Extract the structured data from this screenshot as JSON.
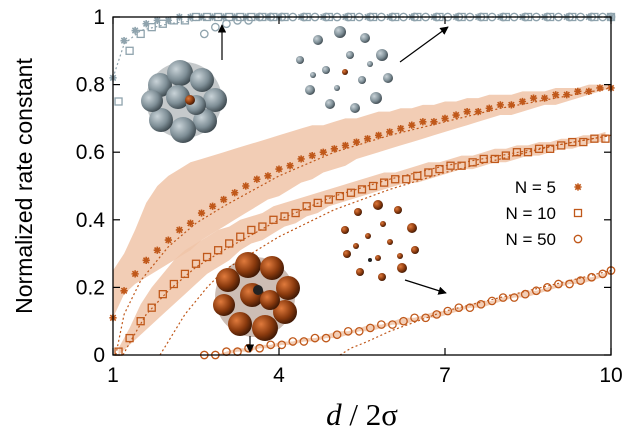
{
  "chart_data": {
    "type": "scatter",
    "title": "",
    "xlabel": {
      "italic": "d",
      "rest": " / 2σ"
    },
    "ylabel": "Normalized rate constant",
    "xlim": [
      1,
      10
    ],
    "ylim": [
      0,
      1
    ],
    "xticks": [
      "1",
      "4",
      "7",
      "10"
    ],
    "yticks": [
      "0",
      "0.2",
      "0.4",
      "0.6",
      "0.8",
      "1"
    ],
    "grid": false,
    "legend_position": "right",
    "legend": [
      {
        "label": "N = 5",
        "marker": "star"
      },
      {
        "label": "N = 10",
        "marker": "square"
      },
      {
        "label": "N = 50",
        "marker": "circle"
      }
    ],
    "colors": {
      "orange": "#c0581a",
      "blue_gray": "#8fa3ad",
      "band": "#f0c4a8"
    },
    "series": [
      {
        "marker": "star",
        "color": "orange",
        "x": [
          1.0,
          1.2,
          1.4,
          1.6,
          1.8,
          2.0,
          2.2,
          2.4,
          2.6,
          2.8,
          3.0,
          3.2,
          3.4,
          3.6,
          3.8,
          4.0,
          4.2,
          4.4,
          4.6,
          4.8,
          5.0,
          5.2,
          5.4,
          5.6,
          5.8,
          6.0,
          6.2,
          6.4,
          6.6,
          6.8,
          7.0,
          7.2,
          7.4,
          7.6,
          7.8,
          8.0,
          8.2,
          8.4,
          8.6,
          8.8,
          9.0,
          9.2,
          9.4,
          9.6,
          9.8,
          10.0
        ],
        "y": [
          0.11,
          0.19,
          0.24,
          0.28,
          0.31,
          0.34,
          0.37,
          0.39,
          0.42,
          0.44,
          0.46,
          0.48,
          0.5,
          0.52,
          0.53,
          0.55,
          0.56,
          0.58,
          0.59,
          0.6,
          0.61,
          0.62,
          0.63,
          0.64,
          0.65,
          0.66,
          0.67,
          0.68,
          0.69,
          0.69,
          0.7,
          0.71,
          0.72,
          0.72,
          0.73,
          0.74,
          0.74,
          0.75,
          0.76,
          0.76,
          0.77,
          0.77,
          0.78,
          0.78,
          0.79,
          0.79
        ],
        "band_upper": [
          0.25,
          0.3,
          0.37,
          0.45,
          0.5,
          0.53,
          0.55,
          0.57,
          0.58,
          0.59,
          0.6,
          0.61,
          0.62,
          0.63,
          0.64,
          0.65,
          0.66,
          0.67,
          0.68,
          0.68,
          0.69,
          0.7,
          0.7,
          0.71,
          0.72,
          0.72,
          0.73,
          0.73,
          0.74,
          0.74,
          0.75,
          0.75,
          0.76,
          0.76,
          0.77,
          0.77,
          0.77,
          0.78,
          0.78,
          0.78,
          0.79,
          0.79,
          0.79,
          0.8,
          0.8,
          0.8
        ],
        "band_lower": [
          0.11,
          0.18,
          0.21,
          0.23,
          0.25,
          0.27,
          0.29,
          0.31,
          0.34,
          0.36,
          0.38,
          0.4,
          0.42,
          0.44,
          0.46,
          0.47,
          0.49,
          0.51,
          0.52,
          0.54,
          0.55,
          0.56,
          0.58,
          0.59,
          0.6,
          0.61,
          0.62,
          0.63,
          0.64,
          0.65,
          0.66,
          0.67,
          0.68,
          0.69,
          0.7,
          0.71,
          0.71,
          0.72,
          0.73,
          0.74,
          0.74,
          0.75,
          0.76,
          0.77,
          0.78,
          0.79
        ]
      },
      {
        "marker": "square",
        "color": "orange",
        "x": [
          1.1,
          1.3,
          1.5,
          1.7,
          1.9,
          2.1,
          2.3,
          2.5,
          2.7,
          2.9,
          3.1,
          3.3,
          3.5,
          3.7,
          3.9,
          4.1,
          4.3,
          4.5,
          4.7,
          4.9,
          5.1,
          5.3,
          5.5,
          5.7,
          5.9,
          6.1,
          6.3,
          6.5,
          6.7,
          6.9,
          7.1,
          7.3,
          7.5,
          7.7,
          7.9,
          8.1,
          8.3,
          8.5,
          8.7,
          8.9,
          9.1,
          9.3,
          9.5,
          9.7,
          9.9
        ],
        "y": [
          0.01,
          0.05,
          0.1,
          0.14,
          0.18,
          0.21,
          0.24,
          0.27,
          0.29,
          0.31,
          0.33,
          0.35,
          0.37,
          0.38,
          0.4,
          0.41,
          0.42,
          0.44,
          0.45,
          0.46,
          0.47,
          0.48,
          0.49,
          0.5,
          0.51,
          0.52,
          0.52,
          0.53,
          0.54,
          0.55,
          0.56,
          0.56,
          0.57,
          0.58,
          0.58,
          0.59,
          0.6,
          0.6,
          0.61,
          0.61,
          0.62,
          0.63,
          0.63,
          0.64,
          0.64
        ],
        "band_upper": [
          0.02,
          0.08,
          0.15,
          0.2,
          0.24,
          0.28,
          0.31,
          0.33,
          0.35,
          0.37,
          0.38,
          0.4,
          0.41,
          0.42,
          0.44,
          0.45,
          0.46,
          0.47,
          0.48,
          0.49,
          0.5,
          0.51,
          0.52,
          0.53,
          0.54,
          0.54,
          0.55,
          0.56,
          0.57,
          0.57,
          0.58,
          0.59,
          0.59,
          0.6,
          0.61,
          0.61,
          0.62,
          0.62,
          0.63,
          0.63,
          0.64,
          0.64,
          0.65,
          0.65,
          0.66
        ],
        "band_lower": [
          0.0,
          0.03,
          0.06,
          0.09,
          0.12,
          0.15,
          0.18,
          0.21,
          0.24,
          0.26,
          0.28,
          0.31,
          0.33,
          0.34,
          0.36,
          0.38,
          0.39,
          0.41,
          0.42,
          0.44,
          0.45,
          0.46,
          0.47,
          0.48,
          0.49,
          0.5,
          0.51,
          0.51,
          0.52,
          0.53,
          0.54,
          0.55,
          0.55,
          0.56,
          0.57,
          0.57,
          0.58,
          0.59,
          0.59,
          0.6,
          0.61,
          0.61,
          0.62,
          0.63,
          0.63
        ]
      },
      {
        "marker": "circle",
        "color": "orange",
        "x": [
          2.65,
          2.85,
          3.05,
          3.25,
          3.45,
          3.65,
          3.85,
          4.05,
          4.25,
          4.45,
          4.65,
          4.85,
          5.05,
          5.25,
          5.45,
          5.65,
          5.85,
          6.05,
          6.25,
          6.45,
          6.65,
          6.85,
          7.05,
          7.25,
          7.45,
          7.65,
          7.85,
          8.05,
          8.25,
          8.45,
          8.65,
          8.85,
          9.05,
          9.25,
          9.45,
          9.65,
          9.85,
          10.0
        ],
        "y": [
          0.0,
          0.0,
          0.01,
          0.01,
          0.02,
          0.02,
          0.03,
          0.03,
          0.04,
          0.04,
          0.05,
          0.05,
          0.06,
          0.07,
          0.07,
          0.08,
          0.09,
          0.09,
          0.1,
          0.11,
          0.11,
          0.12,
          0.13,
          0.14,
          0.14,
          0.15,
          0.16,
          0.17,
          0.17,
          0.18,
          0.19,
          0.2,
          0.21,
          0.21,
          0.22,
          0.23,
          0.24,
          0.25
        ],
        "band_upper": [
          0.0,
          0.0,
          0.01,
          0.02,
          0.02,
          0.03,
          0.03,
          0.04,
          0.04,
          0.05,
          0.05,
          0.06,
          0.07,
          0.07,
          0.08,
          0.09,
          0.09,
          0.1,
          0.11,
          0.11,
          0.12,
          0.13,
          0.13,
          0.14,
          0.15,
          0.16,
          0.16,
          0.17,
          0.18,
          0.19,
          0.19,
          0.2,
          0.21,
          0.22,
          0.23,
          0.23,
          0.24,
          0.25
        ],
        "band_lower": [
          0.0,
          0.0,
          0.0,
          0.01,
          0.01,
          0.02,
          0.02,
          0.03,
          0.03,
          0.04,
          0.04,
          0.05,
          0.05,
          0.06,
          0.07,
          0.07,
          0.08,
          0.09,
          0.09,
          0.1,
          0.11,
          0.11,
          0.12,
          0.13,
          0.14,
          0.14,
          0.15,
          0.16,
          0.17,
          0.17,
          0.18,
          0.19,
          0.2,
          0.21,
          0.21,
          0.22,
          0.23,
          0.24
        ]
      },
      {
        "marker": "star",
        "color": "blue_gray",
        "x": [
          1.0,
          1.2,
          1.4,
          1.6,
          1.8,
          2.0,
          2.2,
          2.4,
          2.6,
          2.8,
          3.0,
          3.2,
          3.4,
          3.6,
          3.8,
          4.0,
          4.4,
          4.8,
          5.2,
          5.6,
          6.0,
          6.4,
          6.8,
          7.2,
          7.6,
          8.0,
          8.4,
          8.8,
          9.2,
          9.6,
          10.0
        ],
        "y": [
          0.82,
          0.93,
          0.96,
          0.98,
          0.99,
          0.99,
          1.0,
          1.0,
          1.0,
          1.0,
          1.0,
          1.0,
          1.0,
          1.0,
          1.0,
          1.0,
          1.0,
          1.0,
          1.0,
          1.0,
          1.0,
          1.0,
          1.0,
          1.0,
          1.0,
          1.0,
          1.0,
          1.0,
          1.0,
          1.0,
          1.0
        ]
      },
      {
        "marker": "square",
        "color": "blue_gray",
        "x": [
          1.1,
          1.3,
          1.5,
          1.7,
          1.9,
          2.1,
          2.3,
          2.5,
          2.7,
          2.9,
          3.1,
          3.3,
          3.5,
          3.7,
          3.9,
          4.1,
          4.5,
          4.9,
          5.3,
          5.7,
          6.1,
          6.5,
          6.9,
          7.3,
          7.7,
          8.1,
          8.5,
          8.9,
          9.3,
          9.7,
          10.0
        ],
        "y": [
          0.75,
          0.9,
          0.95,
          0.97,
          0.98,
          0.99,
          0.99,
          1.0,
          1.0,
          1.0,
          1.0,
          1.0,
          1.0,
          1.0,
          1.0,
          1.0,
          1.0,
          1.0,
          1.0,
          1.0,
          1.0,
          1.0,
          1.0,
          1.0,
          1.0,
          1.0,
          1.0,
          1.0,
          1.0,
          1.0,
          1.0
        ]
      },
      {
        "marker": "circle",
        "color": "blue_gray",
        "x": [
          2.65,
          2.85,
          3.05,
          3.25,
          3.45,
          3.65,
          3.85,
          4.05,
          4.25,
          4.45,
          4.65,
          4.85,
          5.05,
          5.25,
          5.45,
          5.65,
          5.85,
          6.05,
          6.25,
          6.45,
          6.65,
          6.85,
          7.05,
          7.25,
          7.45,
          7.65,
          7.85,
          8.05,
          8.25,
          8.45,
          8.65,
          8.85,
          9.05,
          9.25,
          9.45,
          9.65,
          9.85,
          10.0
        ],
        "y": [
          0.95,
          0.97,
          0.98,
          0.99,
          0.99,
          1.0,
          1.0,
          1.0,
          1.0,
          1.0,
          1.0,
          1.0,
          1.0,
          1.0,
          1.0,
          1.0,
          1.0,
          1.0,
          1.0,
          1.0,
          1.0,
          1.0,
          1.0,
          1.0,
          1.0,
          1.0,
          1.0,
          1.0,
          1.0,
          1.0,
          1.0,
          1.0,
          1.0,
          1.0,
          1.0,
          1.0,
          1.0,
          1.0
        ]
      }
    ],
    "fit_curves": [
      {
        "color": "orange",
        "x": [
          1.05,
          1.2,
          1.5,
          2.0,
          2.5,
          3.0,
          4.0,
          5.0,
          6.0,
          7.0,
          8.0,
          9.0,
          10.0
        ],
        "y": [
          0.0,
          0.12,
          0.22,
          0.32,
          0.39,
          0.44,
          0.53,
          0.6,
          0.65,
          0.69,
          0.73,
          0.76,
          0.79
        ]
      },
      {
        "color": "orange",
        "x": [
          1.18,
          1.35,
          1.6,
          2.0,
          2.5,
          3.0,
          4.0,
          5.0,
          6.0,
          7.0,
          8.0,
          9.0,
          10.0
        ],
        "y": [
          0.0,
          0.05,
          0.12,
          0.19,
          0.26,
          0.31,
          0.4,
          0.47,
          0.52,
          0.56,
          0.59,
          0.62,
          0.65
        ]
      },
      {
        "color": "orange",
        "x": [
          1.85,
          2.0,
          2.3,
          2.7,
          3.0,
          3.5,
          4.0,
          5.0,
          6.0,
          7.0,
          8.0,
          9.0,
          10.0
        ],
        "y": [
          0.0,
          0.04,
          0.12,
          0.2,
          0.25,
          0.3,
          0.35,
          0.43,
          0.49,
          0.54,
          0.58,
          0.62,
          0.65
        ]
      },
      {
        "color": "orange",
        "x": [
          5.1,
          5.3,
          5.6,
          6.0,
          6.5,
          7.0,
          8.0,
          9.0,
          10.0
        ],
        "y": [
          0.0,
          0.02,
          0.04,
          0.07,
          0.1,
          0.13,
          0.17,
          0.21,
          0.25
        ]
      },
      {
        "color": "blue_gray",
        "x": [
          1.0,
          1.2,
          1.5,
          2.0,
          2.5,
          3.0,
          4.0,
          10.0
        ],
        "y": [
          0.82,
          0.92,
          0.96,
          0.98,
          0.99,
          1.0,
          1.0,
          1.0
        ]
      }
    ]
  }
}
